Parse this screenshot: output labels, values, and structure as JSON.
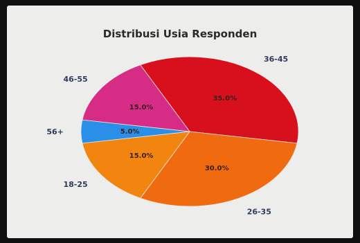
{
  "chart_data": {
    "type": "pie",
    "title": "Distribusi Usia Responden",
    "categories": [
      "36-45",
      "26-35",
      "18-25",
      "56+",
      "46-55"
    ],
    "values": [
      35.0,
      30.0,
      15.0,
      5.0,
      15.0
    ],
    "percent_labels": [
      "35.0%",
      "30.0%",
      "15.0%",
      "5.0%",
      "15.0%"
    ],
    "colors": [
      "#d8101e",
      "#f06a10",
      "#f28410",
      "#2a8fe6",
      "#d62c86"
    ]
  }
}
